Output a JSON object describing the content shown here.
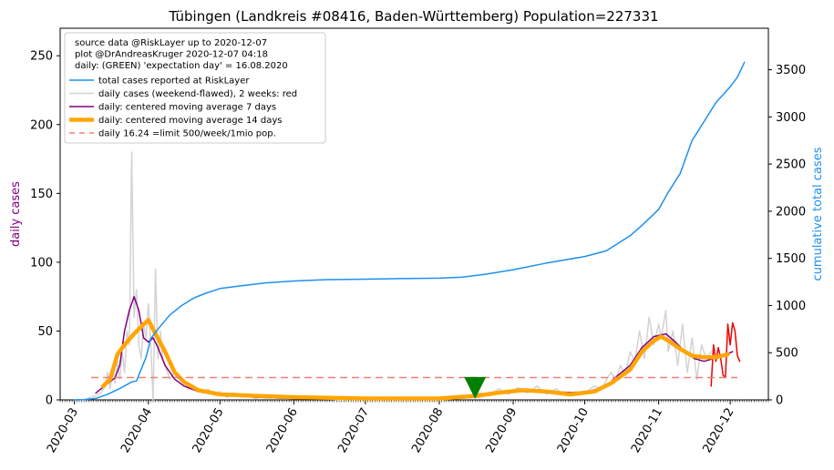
{
  "chart_data": {
    "type": "line",
    "title": "Tübingen (Landkreis #08416, Baden-Württemberg) Population=227331",
    "ylabel_left": "daily cases",
    "ylabel_right": "cumulative total cases",
    "ylim_left": [
      0,
      270
    ],
    "ylim_right": [
      0,
      3940
    ],
    "yticks_left": [
      0,
      50,
      100,
      150,
      200,
      250
    ],
    "yticks_right": [
      0,
      500,
      1000,
      1500,
      2000,
      2500,
      3000,
      3500
    ],
    "xlim": [
      "2020-02-24",
      "2020-12-17"
    ],
    "x_tick_labels": [
      "2020-03",
      "2020-04",
      "2020-05",
      "2020-06",
      "2020-07",
      "2020-08",
      "2020-09",
      "2020-10",
      "2020-11",
      "2020-12"
    ],
    "x_tick_dates": [
      "2020-03-01",
      "2020-04-01",
      "2020-05-01",
      "2020-06-01",
      "2020-07-01",
      "2020-08-01",
      "2020-09-01",
      "2020-10-01",
      "2020-11-01",
      "2020-12-01"
    ],
    "legend_placement": "top-left",
    "legend_header": [
      "source data @RiskLayer up to 2020-12-07",
      "plot @DrAndreasKruger 2020-12-07 04:18",
      "daily: (GREEN) 'expectation day' = 16.08.2020"
    ],
    "colors": {
      "total": "#1e90ee",
      "daily": "#d3d3d3",
      "recent": "#ee0000",
      "ma7": "#800080",
      "ma14": "#ffa500",
      "limit": "#f08070",
      "marker": "#008000"
    },
    "series": [
      {
        "name": "total cases reported at RiskLayer",
        "key": "total",
        "axis": "right",
        "points": [
          [
            "2020-03-01",
            0
          ],
          [
            "2020-03-05",
            2
          ],
          [
            "2020-03-10",
            15
          ],
          [
            "2020-03-15",
            60
          ],
          [
            "2020-03-20",
            120
          ],
          [
            "2020-03-25",
            190
          ],
          [
            "2020-03-27",
            200
          ],
          [
            "2020-03-31",
            450
          ],
          [
            "2020-04-02",
            650
          ],
          [
            "2020-04-05",
            750
          ],
          [
            "2020-04-10",
            900
          ],
          [
            "2020-04-15",
            1000
          ],
          [
            "2020-04-20",
            1080
          ],
          [
            "2020-04-25",
            1130
          ],
          [
            "2020-05-01",
            1180
          ],
          [
            "2020-05-10",
            1210
          ],
          [
            "2020-05-20",
            1240
          ],
          [
            "2020-06-01",
            1260
          ],
          [
            "2020-06-15",
            1275
          ],
          [
            "2020-07-01",
            1280
          ],
          [
            "2020-07-15",
            1285
          ],
          [
            "2020-08-01",
            1290
          ],
          [
            "2020-08-10",
            1300
          ],
          [
            "2020-08-20",
            1330
          ],
          [
            "2020-09-01",
            1380
          ],
          [
            "2020-09-15",
            1450
          ],
          [
            "2020-10-01",
            1520
          ],
          [
            "2020-10-10",
            1580
          ],
          [
            "2020-10-15",
            1660
          ],
          [
            "2020-10-20",
            1740
          ],
          [
            "2020-10-25",
            1850
          ],
          [
            "2020-11-01",
            2020
          ],
          [
            "2020-11-05",
            2200
          ],
          [
            "2020-11-10",
            2400
          ],
          [
            "2020-11-15",
            2750
          ],
          [
            "2020-11-20",
            2950
          ],
          [
            "2020-11-25",
            3150
          ],
          [
            "2020-12-01",
            3320
          ],
          [
            "2020-12-04",
            3420
          ],
          [
            "2020-12-07",
            3580
          ]
        ]
      },
      {
        "name": "daily cases (weekend-flawed), 2 weeks: red",
        "key": "daily",
        "axis": "left",
        "points": [
          [
            "2020-03-01",
            0
          ],
          [
            "2020-03-05",
            0
          ],
          [
            "2020-03-08",
            2
          ],
          [
            "2020-03-10",
            3
          ],
          [
            "2020-03-12",
            5
          ],
          [
            "2020-03-14",
            10
          ],
          [
            "2020-03-15",
            20
          ],
          [
            "2020-03-16",
            8
          ],
          [
            "2020-03-17",
            25
          ],
          [
            "2020-03-18",
            12
          ],
          [
            "2020-03-19",
            28
          ],
          [
            "2020-03-20",
            15
          ],
          [
            "2020-03-21",
            35
          ],
          [
            "2020-03-22",
            20
          ],
          [
            "2020-03-23",
            50
          ],
          [
            "2020-03-24",
            40
          ],
          [
            "2020-03-25",
            180
          ],
          [
            "2020-03-26",
            60
          ],
          [
            "2020-03-27",
            80
          ],
          [
            "2020-03-28",
            40
          ],
          [
            "2020-03-29",
            30
          ],
          [
            "2020-03-30",
            55
          ],
          [
            "2020-03-31",
            45
          ],
          [
            "2020-04-01",
            70
          ],
          [
            "2020-04-02",
            40
          ],
          [
            "2020-04-03",
            0
          ],
          [
            "2020-04-04",
            95
          ],
          [
            "2020-04-05",
            30
          ],
          [
            "2020-04-06",
            50
          ],
          [
            "2020-04-07",
            30
          ],
          [
            "2020-04-08",
            25
          ],
          [
            "2020-04-09",
            20
          ],
          [
            "2020-04-10",
            15
          ],
          [
            "2020-04-12",
            20
          ],
          [
            "2020-04-14",
            15
          ],
          [
            "2020-04-16",
            12
          ],
          [
            "2020-04-18",
            8
          ],
          [
            "2020-04-20",
            10
          ],
          [
            "2020-04-22",
            6
          ],
          [
            "2020-04-24",
            5
          ],
          [
            "2020-04-26",
            8
          ],
          [
            "2020-04-28",
            4
          ],
          [
            "2020-05-01",
            6
          ],
          [
            "2020-05-04",
            2
          ],
          [
            "2020-05-07",
            5
          ],
          [
            "2020-05-10",
            2
          ],
          [
            "2020-05-13",
            4
          ],
          [
            "2020-05-16",
            1
          ],
          [
            "2020-05-20",
            3
          ],
          [
            "2020-05-25",
            2
          ],
          [
            "2020-06-01",
            1
          ],
          [
            "2020-06-10",
            2
          ],
          [
            "2020-06-20",
            0
          ],
          [
            "2020-07-01",
            1
          ],
          [
            "2020-07-15",
            0
          ],
          [
            "2020-08-01",
            1
          ],
          [
            "2020-08-10",
            2
          ],
          [
            "2020-08-18",
            5
          ],
          [
            "2020-08-22",
            3
          ],
          [
            "2020-08-26",
            8
          ],
          [
            "2020-08-30",
            4
          ],
          [
            "2020-09-03",
            9
          ],
          [
            "2020-09-07",
            5
          ],
          [
            "2020-09-11",
            10
          ],
          [
            "2020-09-15",
            4
          ],
          [
            "2020-09-19",
            8
          ],
          [
            "2020-09-23",
            3
          ],
          [
            "2020-09-27",
            6
          ],
          [
            "2020-10-01",
            5
          ],
          [
            "2020-10-05",
            10
          ],
          [
            "2020-10-08",
            8
          ],
          [
            "2020-10-12",
            20
          ],
          [
            "2020-10-14",
            15
          ],
          [
            "2020-10-16",
            25
          ],
          [
            "2020-10-18",
            18
          ],
          [
            "2020-10-20",
            35
          ],
          [
            "2020-10-22",
            28
          ],
          [
            "2020-10-24",
            50
          ],
          [
            "2020-10-26",
            30
          ],
          [
            "2020-10-28",
            60
          ],
          [
            "2020-10-30",
            40
          ],
          [
            "2020-11-01",
            55
          ],
          [
            "2020-11-02",
            45
          ],
          [
            "2020-11-04",
            65
          ],
          [
            "2020-11-05",
            35
          ],
          [
            "2020-11-07",
            50
          ],
          [
            "2020-11-09",
            25
          ],
          [
            "2020-11-11",
            55
          ],
          [
            "2020-11-13",
            20
          ],
          [
            "2020-11-15",
            45
          ],
          [
            "2020-11-17",
            15
          ],
          [
            "2020-11-19",
            40
          ],
          [
            "2020-11-21",
            30
          ],
          [
            "2020-11-23",
            35
          ]
        ]
      },
      {
        "name": "daily cases last 2 weeks",
        "key": "recent",
        "axis": "left",
        "points": [
          [
            "2020-11-23",
            10
          ],
          [
            "2020-11-24",
            40
          ],
          [
            "2020-11-25",
            28
          ],
          [
            "2020-11-26",
            38
          ],
          [
            "2020-11-27",
            30
          ],
          [
            "2020-11-28",
            18
          ],
          [
            "2020-11-29",
            16
          ],
          [
            "2020-11-30",
            55
          ],
          [
            "2020-12-01",
            40
          ],
          [
            "2020-12-02",
            56
          ],
          [
            "2020-12-03",
            50
          ],
          [
            "2020-12-04",
            32
          ],
          [
            "2020-12-05",
            28
          ]
        ]
      },
      {
        "name": "daily: centered moving average 7 days",
        "key": "ma7",
        "axis": "left",
        "points": [
          [
            "2020-03-10",
            5
          ],
          [
            "2020-03-15",
            12
          ],
          [
            "2020-03-18",
            16
          ],
          [
            "2020-03-20",
            25
          ],
          [
            "2020-03-22",
            50
          ],
          [
            "2020-03-24",
            65
          ],
          [
            "2020-03-26",
            75
          ],
          [
            "2020-03-28",
            65
          ],
          [
            "2020-03-30",
            45
          ],
          [
            "2020-04-01",
            42
          ],
          [
            "2020-04-03",
            45
          ],
          [
            "2020-04-05",
            38
          ],
          [
            "2020-04-08",
            25
          ],
          [
            "2020-04-12",
            15
          ],
          [
            "2020-04-16",
            10
          ],
          [
            "2020-04-22",
            6
          ],
          [
            "2020-05-01",
            4
          ],
          [
            "2020-05-15",
            2
          ],
          [
            "2020-06-01",
            1
          ],
          [
            "2020-07-01",
            1
          ],
          [
            "2020-08-01",
            1
          ],
          [
            "2020-08-18",
            3
          ],
          [
            "2020-09-01",
            6
          ],
          [
            "2020-09-15",
            6
          ],
          [
            "2020-10-01",
            5
          ],
          [
            "2020-10-10",
            10
          ],
          [
            "2020-10-15",
            18
          ],
          [
            "2020-10-20",
            25
          ],
          [
            "2020-10-25",
            38
          ],
          [
            "2020-10-30",
            46
          ],
          [
            "2020-11-04",
            48
          ],
          [
            "2020-11-08",
            42
          ],
          [
            "2020-11-12",
            35
          ],
          [
            "2020-11-16",
            30
          ],
          [
            "2020-11-20",
            28
          ],
          [
            "2020-11-24",
            30
          ],
          [
            "2020-11-28",
            32
          ],
          [
            "2020-12-02",
            35
          ]
        ]
      },
      {
        "name": "daily: centered moving average 14 days",
        "key": "ma14",
        "axis": "left",
        "points": [
          [
            "2020-03-13",
            10
          ],
          [
            "2020-03-16",
            15
          ],
          [
            "2020-03-19",
            33
          ],
          [
            "2020-03-22",
            40
          ],
          [
            "2020-03-26",
            48
          ],
          [
            "2020-03-30",
            55
          ],
          [
            "2020-04-01",
            58
          ],
          [
            "2020-04-04",
            48
          ],
          [
            "2020-04-08",
            35
          ],
          [
            "2020-04-12",
            20
          ],
          [
            "2020-04-16",
            13
          ],
          [
            "2020-04-22",
            7
          ],
          [
            "2020-05-01",
            4
          ],
          [
            "2020-05-15",
            3
          ],
          [
            "2020-06-01",
            2
          ],
          [
            "2020-07-01",
            1
          ],
          [
            "2020-08-01",
            1
          ],
          [
            "2020-08-17",
            3
          ],
          [
            "2020-08-25",
            5
          ],
          [
            "2020-09-05",
            7
          ],
          [
            "2020-09-15",
            6
          ],
          [
            "2020-09-25",
            4
          ],
          [
            "2020-10-05",
            6
          ],
          [
            "2020-10-12",
            12
          ],
          [
            "2020-10-20",
            22
          ],
          [
            "2020-10-25",
            35
          ],
          [
            "2020-10-30",
            43
          ],
          [
            "2020-11-02",
            46
          ],
          [
            "2020-11-06",
            42
          ],
          [
            "2020-11-10",
            37
          ],
          [
            "2020-11-15",
            32
          ],
          [
            "2020-11-20",
            31
          ],
          [
            "2020-11-25",
            31
          ],
          [
            "2020-11-30",
            33
          ]
        ]
      }
    ],
    "limit_line": {
      "name": "daily 16.24 =limit 500/week/1mio pop.",
      "value": 16.24,
      "x_range": [
        "2020-03-08",
        "2020-12-04"
      ]
    },
    "expectation_marker": {
      "date": "2020-08-16",
      "value": 8
    }
  }
}
